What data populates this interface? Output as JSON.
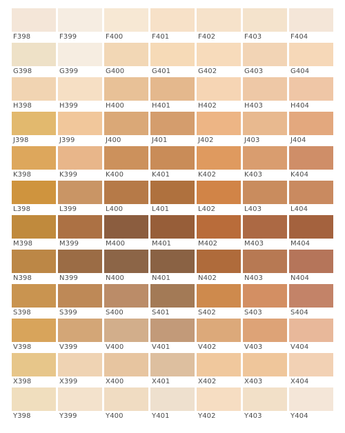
{
  "palette": {
    "rows": [
      {
        "letter": "F",
        "cells": [
          {
            "code": "F398",
            "color": "#F4E6D8"
          },
          {
            "code": "F399",
            "color": "#F6EDE2"
          },
          {
            "code": "F400",
            "color": "#F7E8D4"
          },
          {
            "code": "F401",
            "color": "#F7E1C8"
          },
          {
            "code": "F402",
            "color": "#F6E2CA"
          },
          {
            "code": "F403",
            "color": "#F4E3CC"
          },
          {
            "code": "F404",
            "color": "#F4E6D8"
          }
        ]
      },
      {
        "letter": "G",
        "cells": [
          {
            "code": "G398",
            "color": "#EEE1C7"
          },
          {
            "code": "G399",
            "color": "#F6EDE1"
          },
          {
            "code": "G400",
            "color": "#F2D7B5"
          },
          {
            "code": "G401",
            "color": "#F6DAB7"
          },
          {
            "code": "G402",
            "color": "#F7DBBB"
          },
          {
            "code": "G403",
            "color": "#F2D4B5"
          },
          {
            "code": "G404",
            "color": "#F6D8B8"
          }
        ]
      },
      {
        "letter": "H",
        "cells": [
          {
            "code": "H398",
            "color": "#F1D4B2"
          },
          {
            "code": "H399",
            "color": "#F6DFC4"
          },
          {
            "code": "H400",
            "color": "#E8C197"
          },
          {
            "code": "H401",
            "color": "#E4B88D"
          },
          {
            "code": "H402",
            "color": "#F6D5B4"
          },
          {
            "code": "H403",
            "color": "#EEC8A6"
          },
          {
            "code": "H404",
            "color": "#EFC6A6"
          }
        ]
      },
      {
        "letter": "J",
        "cells": [
          {
            "code": "J398",
            "color": "#E2B96E"
          },
          {
            "code": "J399",
            "color": "#F1C79B"
          },
          {
            "code": "J400",
            "color": "#DAA877"
          },
          {
            "code": "J401",
            "color": "#D49D6D"
          },
          {
            "code": "J402",
            "color": "#EDB585"
          },
          {
            "code": "J403",
            "color": "#E8B98F"
          },
          {
            "code": "J404",
            "color": "#E3A87E"
          }
        ]
      },
      {
        "letter": "K",
        "cells": [
          {
            "code": "K398",
            "color": "#DDA75C"
          },
          {
            "code": "K399",
            "color": "#E8B68A"
          },
          {
            "code": "K400",
            "color": "#CC915C"
          },
          {
            "code": "K401",
            "color": "#C98C58"
          },
          {
            "code": "K402",
            "color": "#DF9A5F"
          },
          {
            "code": "K403",
            "color": "#D99D6F"
          },
          {
            "code": "K404",
            "color": "#CF8E68"
          }
        ]
      },
      {
        "letter": "L",
        "cells": [
          {
            "code": "L398",
            "color": "#CF943E"
          },
          {
            "code": "L399",
            "color": "#C99565"
          },
          {
            "code": "L400",
            "color": "#B67A48"
          },
          {
            "code": "L401",
            "color": "#AF713E"
          },
          {
            "code": "L402",
            "color": "#D18447"
          },
          {
            "code": "L403",
            "color": "#C98C5E"
          },
          {
            "code": "L404",
            "color": "#C98A60"
          }
        ]
      },
      {
        "letter": "M",
        "cells": [
          {
            "code": "M398",
            "color": "#C08A3D"
          },
          {
            "code": "M399",
            "color": "#AC7144"
          },
          {
            "code": "M400",
            "color": "#8B5D3F"
          },
          {
            "code": "M401",
            "color": "#975E39"
          },
          {
            "code": "M402",
            "color": "#B96C3A"
          },
          {
            "code": "M403",
            "color": "#AC6944"
          },
          {
            "code": "M404",
            "color": "#A4623E"
          }
        ]
      },
      {
        "letter": "N",
        "cells": [
          {
            "code": "N398",
            "color": "#BC8746"
          },
          {
            "code": "N399",
            "color": "#9B6C45"
          },
          {
            "code": "N400",
            "color": "#8C6547"
          },
          {
            "code": "N401",
            "color": "#8A6244"
          },
          {
            "code": "N402",
            "color": "#AF6B3B"
          },
          {
            "code": "N403",
            "color": "#B77953"
          },
          {
            "code": "N404",
            "color": "#B5755A"
          }
        ]
      },
      {
        "letter": "S",
        "cells": [
          {
            "code": "S398",
            "color": "#C99450"
          },
          {
            "code": "S399",
            "color": "#BE8957"
          },
          {
            "code": "S400",
            "color": "#BB8C68"
          },
          {
            "code": "S401",
            "color": "#A37A56"
          },
          {
            "code": "S402",
            "color": "#CE8A4D"
          },
          {
            "code": "S403",
            "color": "#D38F63"
          },
          {
            "code": "S404",
            "color": "#C38368"
          }
        ]
      },
      {
        "letter": "V",
        "cells": [
          {
            "code": "V398",
            "color": "#D8A45B"
          },
          {
            "code": "V399",
            "color": "#D3A677"
          },
          {
            "code": "V400",
            "color": "#D2AE8B"
          },
          {
            "code": "V401",
            "color": "#C29A79"
          },
          {
            "code": "V402",
            "color": "#DCA97A"
          },
          {
            "code": "V403",
            "color": "#DDA377"
          },
          {
            "code": "V404",
            "color": "#E8B89A"
          }
        ]
      },
      {
        "letter": "X",
        "cells": [
          {
            "code": "X398",
            "color": "#E7C68A"
          },
          {
            "code": "X399",
            "color": "#EFD3B3"
          },
          {
            "code": "X400",
            "color": "#E7C5A0"
          },
          {
            "code": "X401",
            "color": "#DDBF9F"
          },
          {
            "code": "X402",
            "color": "#F0C89D"
          },
          {
            "code": "X403",
            "color": "#EFC69B"
          },
          {
            "code": "X404",
            "color": "#F2D1B4"
          }
        ]
      },
      {
        "letter": "Y",
        "cells": [
          {
            "code": "Y398",
            "color": "#F0DEBE"
          },
          {
            "code": "Y399",
            "color": "#F3E2CC"
          },
          {
            "code": "Y400",
            "color": "#F0DCC2"
          },
          {
            "code": "Y401",
            "color": "#EEE0CE"
          },
          {
            "code": "Y402",
            "color": "#F6DDC2"
          },
          {
            "code": "Y403",
            "color": "#F2E0C8"
          },
          {
            "code": "Y404",
            "color": "#F4E6D8"
          }
        ]
      }
    ]
  }
}
